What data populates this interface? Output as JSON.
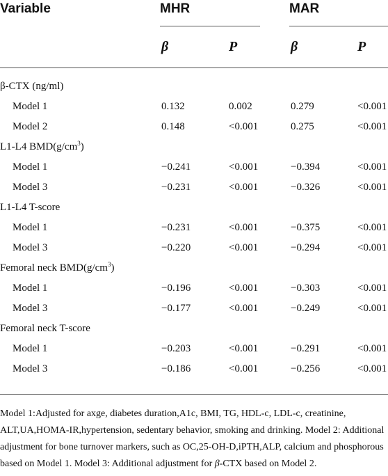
{
  "header": {
    "variable": "Variable",
    "mhr": "MHR",
    "mar": "MAR",
    "beta": "β",
    "p": "P"
  },
  "rows": [
    {
      "type": "group",
      "label": "β-CTX (ng/ml)"
    },
    {
      "type": "data",
      "label": "Model 1",
      "mhr_beta": "0.132",
      "mhr_p": "0.002",
      "mar_beta": "0.279",
      "mar_p": "<0.001"
    },
    {
      "type": "data",
      "label": "Model 2",
      "mhr_beta": "0.148",
      "mhr_p": "<0.001",
      "mar_beta": "0.275",
      "mar_p": "<0.001"
    },
    {
      "type": "group",
      "label": "L1-L4 BMD(g/cm",
      "sup": "3",
      "tail": ")"
    },
    {
      "type": "data",
      "label": "Model 1",
      "mhr_beta": "−0.241",
      "mhr_p": "<0.001",
      "mar_beta": "−0.394",
      "mar_p": "<0.001"
    },
    {
      "type": "data",
      "label": "Model 3",
      "mhr_beta": "−0.231",
      "mhr_p": "<0.001",
      "mar_beta": "−0.326",
      "mar_p": "<0.001"
    },
    {
      "type": "group",
      "label": "L1-L4 T-score"
    },
    {
      "type": "data",
      "label": "Model 1",
      "mhr_beta": "−0.231",
      "mhr_p": "<0.001",
      "mar_beta": "−0.375",
      "mar_p": "<0.001"
    },
    {
      "type": "data",
      "label": "Model 3",
      "mhr_beta": "−0.220",
      "mhr_p": "<0.001",
      "mar_beta": "−0.294",
      "mar_p": "<0.001"
    },
    {
      "type": "group",
      "label": "Femoral neck BMD(g/cm",
      "sup": "3",
      "tail": ")"
    },
    {
      "type": "data",
      "label": "Model 1",
      "mhr_beta": "−0.196",
      "mhr_p": "<0.001",
      "mar_beta": "−0.303",
      "mar_p": "<0.001"
    },
    {
      "type": "data",
      "label": "Model 3",
      "mhr_beta": "−0.177",
      "mhr_p": "<0.001",
      "mar_beta": "−0.249",
      "mar_p": "<0.001"
    },
    {
      "type": "group",
      "label": "Femoral neck T-score"
    },
    {
      "type": "data",
      "label": "Model 1",
      "mhr_beta": "−0.203",
      "mhr_p": "<0.001",
      "mar_beta": "−0.291",
      "mar_p": "<0.001"
    },
    {
      "type": "data",
      "label": "Model 3",
      "mhr_beta": "−0.186",
      "mhr_p": "<0.001",
      "mar_beta": "−0.256",
      "mar_p": "<0.001"
    }
  ],
  "footnote": {
    "part1": "Model 1:Adjusted for axge, diabetes duration,A1c, BMI, TG, HDL-c, LDL-c, creatinine, ALT,UA,HOMA-IR,hypertension, sedentary behavior, smoking and drinking. Model 2: Additional adjustment for bone turnover markers, such as OC,25-OH-D,iPTH,ALP, calcium and phosphorous based on Model 1. Model 3: Additional adjustment for ",
    "beta_symbol": "β",
    "part2": "-CTX based on Model 2."
  }
}
